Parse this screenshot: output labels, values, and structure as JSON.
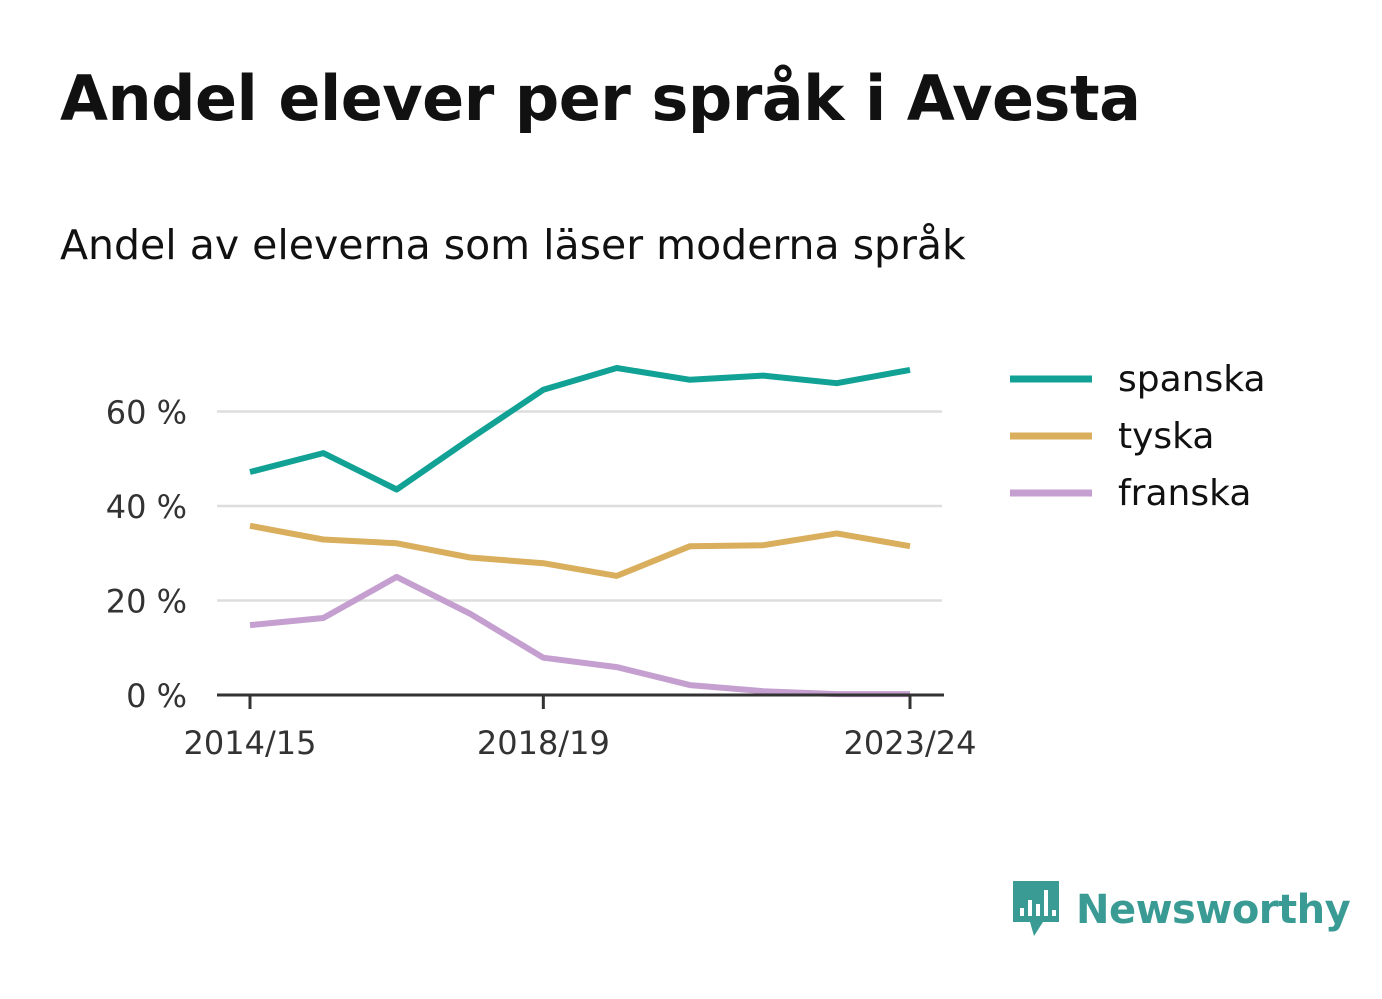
{
  "header": {
    "title": "Andel elever per språk i Avesta",
    "subtitle": "Andel av eleverna som läser moderna språk"
  },
  "brand": {
    "name": "Newsworthy",
    "icon": "newsworthy-logo-icon",
    "color": "#3a9b95"
  },
  "chart_data": {
    "type": "line",
    "title": "Andel elever per språk i Avesta",
    "subtitle": "Andel av eleverna som läser moderna språk",
    "x": [
      "2014/15",
      "2015/16",
      "2016/17",
      "2017/18",
      "2018/19",
      "2019/20",
      "2020/21",
      "2021/22",
      "2022/23",
      "2023/24"
    ],
    "x_tick_labels": [
      "2014/15",
      "2018/19",
      "2023/24"
    ],
    "ylim": [
      0,
      75
    ],
    "y_ticks": [
      0,
      20,
      40,
      60
    ],
    "y_tick_labels": [
      "0 %",
      "20 %",
      "40 %",
      "60 %"
    ],
    "grid": true,
    "legend_position": "right",
    "series": [
      {
        "name": "spanska",
        "color": "#11a295",
        "values": [
          47.2,
          51.2,
          43.5,
          54.2,
          64.6,
          69.2,
          66.7,
          67.6,
          66.0,
          68.8
        ]
      },
      {
        "name": "tyska",
        "color": "#d9ae5c",
        "values": [
          35.8,
          32.9,
          32.1,
          29.1,
          27.9,
          25.2,
          31.5,
          31.7,
          34.2,
          31.5
        ]
      },
      {
        "name": "franska",
        "color": "#c49fcf",
        "values": [
          14.8,
          16.3,
          25.0,
          17.2,
          7.9,
          5.9,
          2.1,
          0.8,
          0.2,
          0.2
        ]
      }
    ]
  }
}
